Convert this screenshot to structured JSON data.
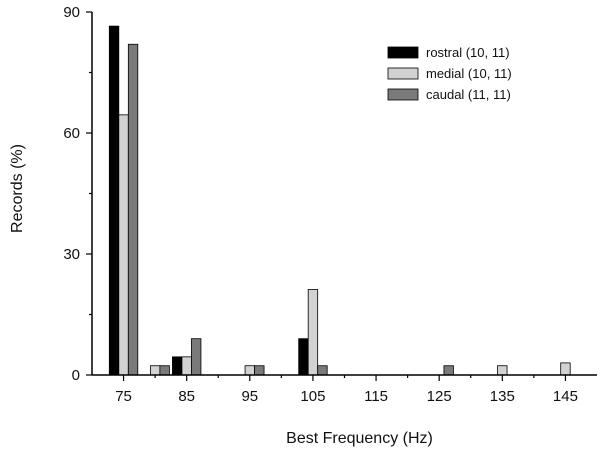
{
  "chart_data": {
    "type": "bar",
    "xlabel": "Best Frequency (Hz)",
    "ylabel": "Records (%)",
    "ylim": [
      0,
      90
    ],
    "xlim": [
      70,
      150
    ],
    "yticks": [
      0,
      30,
      60,
      90
    ],
    "xticks": [
      75,
      85,
      95,
      105,
      115,
      125,
      135,
      145
    ],
    "legend_position": "top-right",
    "series": [
      {
        "name": "rostral (10, 11)",
        "color": "#000000",
        "x": [
          75,
          85,
          105
        ],
        "values": [
          86.5,
          4.5,
          9
        ]
      },
      {
        "name": "medial (10, 11)",
        "color": "#d2d2d2",
        "x": [
          75,
          80,
          85,
          95,
          105,
          135,
          145
        ],
        "values": [
          64.5,
          2.3,
          4.5,
          2.3,
          21.2,
          2.3,
          3
        ]
      },
      {
        "name": "caudal (11, 11)",
        "color": "#7a7a7a",
        "x": [
          75,
          80,
          85,
          95,
          105,
          125
        ],
        "values": [
          82,
          2.3,
          9,
          2.3,
          2.3,
          2.3
        ]
      }
    ]
  }
}
